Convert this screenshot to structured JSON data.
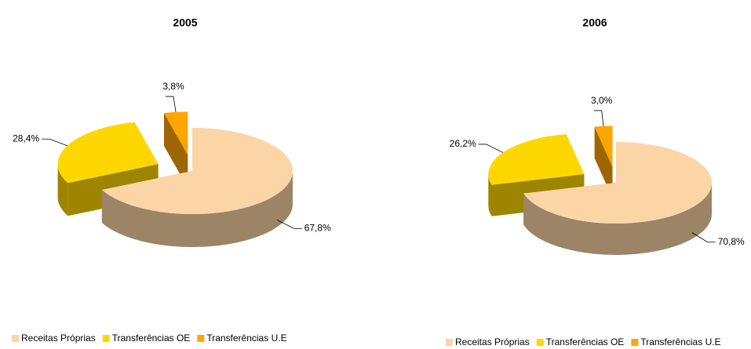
{
  "chart_data": [
    {
      "type": "pie",
      "title": "2005",
      "categories": [
        "Receitas Próprias",
        "Transferências OE",
        "Transferências U.E"
      ],
      "values": [
        67.8,
        28.4,
        3.8
      ],
      "value_labels": [
        "67,8%",
        "28,4%",
        "3,8%"
      ],
      "colors": [
        "#fcd5a6",
        "#ffd700",
        "#ffa500"
      ]
    },
    {
      "type": "pie",
      "title": "2006",
      "categories": [
        "Receitas Próprias",
        "Transferências OE",
        "Transferências U.E"
      ],
      "values": [
        70.8,
        26.2,
        3.0
      ],
      "value_labels": [
        "70,8%",
        "26,2%",
        "3,0%"
      ],
      "colors": [
        "#fcd5a6",
        "#ffd700",
        "#ffa500"
      ]
    }
  ]
}
